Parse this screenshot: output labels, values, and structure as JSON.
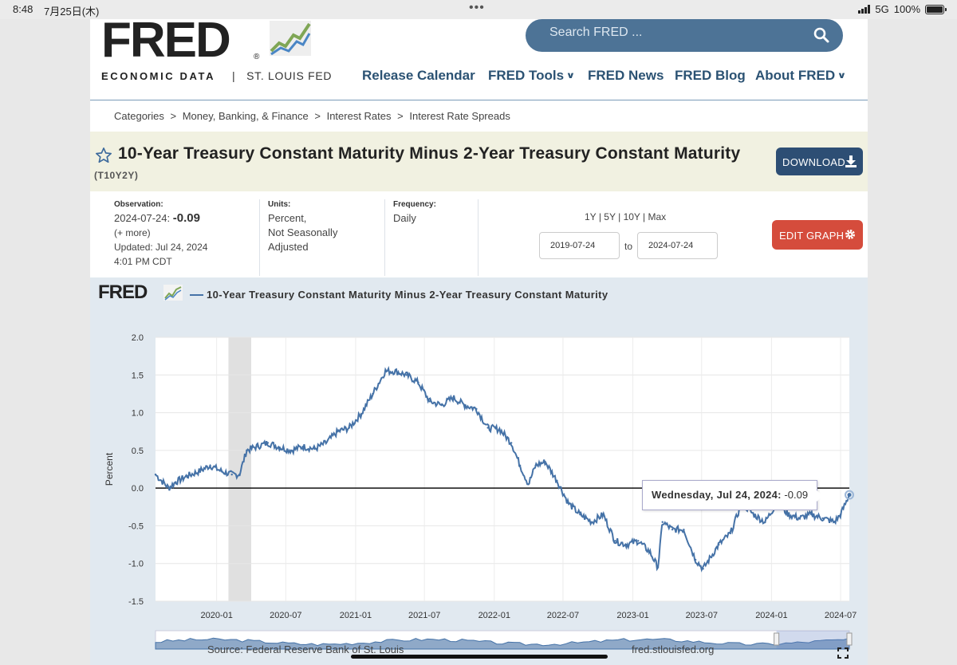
{
  "status_bar": {
    "time": "8:48",
    "date": "7月25日(木)",
    "dots": "•••",
    "network": "5G",
    "battery": "100%",
    "battery_level": 1.0
  },
  "header": {
    "logo_text": "FRED",
    "logo_reg": "®",
    "tagline_left": "ECONOMIC DATA",
    "tagline_sep": "|",
    "tagline_right": "ST. LOUIS FED",
    "search_placeholder": "Search FRED ...",
    "nav": [
      {
        "label": "Release Calendar",
        "dropdown": false
      },
      {
        "label": "FRED Tools",
        "dropdown": true
      },
      {
        "label": "FRED News",
        "dropdown": false
      },
      {
        "label": "FRED Blog",
        "dropdown": false
      },
      {
        "label": "About FRED",
        "dropdown": true
      }
    ]
  },
  "breadcrumb": [
    "Categories",
    ">",
    "Money, Banking, & Finance",
    ">",
    "Interest Rates",
    ">",
    "Interest Rate Spreads"
  ],
  "series": {
    "title": "10-Year Treasury Constant Maturity Minus 2-Year Treasury Constant Maturity",
    "id": "(T10Y2Y)",
    "download_label": "DOWNLOAD"
  },
  "observation": {
    "label": "Observation:",
    "date": "2024-07-24:",
    "value": "-0.09",
    "more": "(+ more)",
    "updated_label": "Updated:",
    "updated": "Jul 24, 2024",
    "updated_time": "4:01 PM CDT"
  },
  "units": {
    "label": "Units:",
    "lines": [
      "Percent,",
      "Not Seasonally",
      "Adjusted"
    ]
  },
  "frequency": {
    "label": "Frequency:",
    "value": "Daily"
  },
  "range_buttons": [
    "1Y",
    "|",
    "5Y",
    "|",
    "10Y",
    "|",
    "Max"
  ],
  "date_range": {
    "start": "2019-07-24",
    "to": "to",
    "end": "2024-07-24"
  },
  "edit_graph_label": "EDIT GRAPH",
  "chart_panel": {
    "logo": "FRED",
    "source": "Source: Federal Reserve Bank of St. Louis",
    "site": "fred.stlouisfed.org",
    "tooltip_date": "Wednesday, Jul 24, 2024:",
    "tooltip_value": "-0.09"
  },
  "colors": {
    "line": "#4572a7",
    "recession": "#e0e0e0",
    "download": "#2d4e74",
    "edit": "#d54c3c",
    "search": "#4d7396",
    "nav": "#2b5273",
    "title_band": "#f1f1e1"
  },
  "chart_data": {
    "type": "line",
    "title": "10-Year Treasury Constant Maturity Minus 2-Year Treasury Constant Maturity",
    "xlabel": "",
    "ylabel": "Percent",
    "ylim": [
      -1.5,
      2.0
    ],
    "yticks": [
      "2.0",
      "1.5",
      "1.0",
      "0.5",
      "0.0",
      "-0.5",
      "-1.0",
      "-1.5"
    ],
    "xticks": [
      "2020-01",
      "2020-07",
      "2021-01",
      "2021-07",
      "2022-01",
      "2022-07",
      "2023-01",
      "2023-07",
      "2024-01",
      "2024-07"
    ],
    "xlim": [
      "2019-07-24",
      "2024-07-24"
    ],
    "recession": [
      "2020-02",
      "2020-04"
    ],
    "zero_line": true,
    "series": [
      {
        "name": "10-Year Treasury Constant Maturity Minus 2-Year Treasury Constant Maturity",
        "x": [
          "2019-07-24",
          "2019-08-28",
          "2019-09-15",
          "2019-10-15",
          "2019-11-15",
          "2019-12-15",
          "2020-01-15",
          "2020-02-10",
          "2020-03-01",
          "2020-03-20",
          "2020-04-15",
          "2020-05-15",
          "2020-06-15",
          "2020-07-15",
          "2020-08-15",
          "2020-09-15",
          "2020-10-15",
          "2020-11-15",
          "2020-12-15",
          "2021-01-15",
          "2021-02-15",
          "2021-03-20",
          "2021-04-15",
          "2021-05-15",
          "2021-06-15",
          "2021-07-15",
          "2021-08-15",
          "2021-09-15",
          "2021-10-15",
          "2021-11-15",
          "2021-12-15",
          "2022-01-15",
          "2022-02-15",
          "2022-03-10",
          "2022-04-01",
          "2022-04-20",
          "2022-05-15",
          "2022-06-15",
          "2022-07-15",
          "2022-08-15",
          "2022-09-15",
          "2022-10-15",
          "2022-11-15",
          "2022-12-15",
          "2023-01-15",
          "2023-02-15",
          "2023-03-08",
          "2023-03-20",
          "2023-04-15",
          "2023-05-15",
          "2023-06-15",
          "2023-07-05",
          "2023-08-15",
          "2023-09-15",
          "2023-10-15",
          "2023-11-15",
          "2023-12-15",
          "2024-01-15",
          "2024-02-15",
          "2024-03-15",
          "2024-04-15",
          "2024-05-15",
          "2024-06-15",
          "2024-07-01",
          "2024-07-24"
        ],
        "y": [
          0.18,
          0.0,
          0.08,
          0.16,
          0.22,
          0.3,
          0.22,
          0.18,
          0.18,
          0.5,
          0.55,
          0.6,
          0.54,
          0.5,
          0.55,
          0.52,
          0.6,
          0.75,
          0.8,
          0.98,
          1.25,
          1.55,
          1.55,
          1.5,
          1.4,
          1.15,
          1.1,
          1.2,
          1.1,
          1.05,
          0.8,
          0.78,
          0.6,
          0.3,
          0.05,
          0.3,
          0.35,
          0.1,
          -0.2,
          -0.35,
          -0.45,
          -0.35,
          -0.7,
          -0.75,
          -0.7,
          -0.85,
          -1.05,
          -0.45,
          -0.55,
          -0.55,
          -0.95,
          -1.07,
          -0.75,
          -0.6,
          -0.2,
          -0.35,
          -0.45,
          -0.2,
          -0.35,
          -0.4,
          -0.35,
          -0.4,
          -0.45,
          -0.35,
          -0.09
        ]
      }
    ]
  }
}
